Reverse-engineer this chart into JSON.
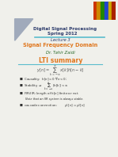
{
  "bg_color": "#f0f0eb",
  "title_line1": "Digital Signal Processing",
  "title_line2": "Spring 2012",
  "title_color": "#2b3a6b",
  "lecture_label": "Lecture 3",
  "lecture_color": "#2b3a6b",
  "signal_title": "Signal Frequency Domain",
  "signal_color": "#e07820",
  "author": "Dr. Tahir Zaidi",
  "author_color": "#2b6b2b",
  "section_title": "LTI summary",
  "section_color": "#e07820",
  "line_color": "#5bbccc",
  "bullet_color": "#333333",
  "triangle_color": "#a0aabb"
}
